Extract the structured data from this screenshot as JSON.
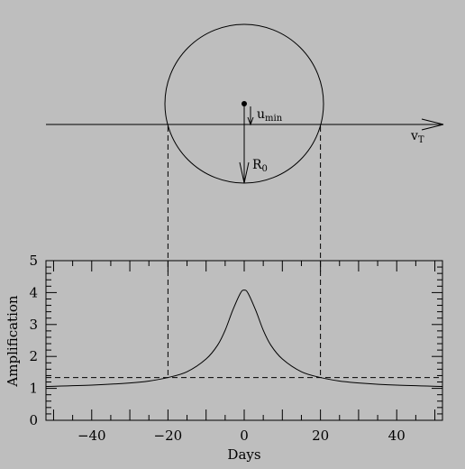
{
  "diagram": {
    "labels": {
      "impact_parameter": "u",
      "impact_parameter_sub": "min",
      "velocity": "v",
      "velocity_sub": "T",
      "einstein_radius": "R",
      "einstein_radius_sub": "0"
    },
    "line_color": "#000000",
    "background_color": "#bebebe"
  },
  "chart_data": {
    "type": "line",
    "xlabel": "Days",
    "ylabel": "Amplification",
    "xlim": [
      -52,
      52
    ],
    "ylim": [
      0,
      5
    ],
    "x_ticks": [
      -40,
      -20,
      0,
      20,
      40
    ],
    "x_tick_labels": [
      "−40",
      "−20",
      "0",
      "20",
      "40"
    ],
    "y_ticks": [
      0,
      1,
      2,
      3,
      4,
      5
    ],
    "y_tick_labels": [
      "0",
      "1",
      "2",
      "3",
      "4",
      "5"
    ],
    "grid": false,
    "series": [
      {
        "x": [
          -52,
          -40,
          -30,
          -25,
          -20,
          -15,
          -10,
          -7,
          -5,
          -3,
          -1,
          0,
          1,
          3,
          5,
          7,
          10,
          15,
          20,
          25,
          30,
          40,
          52
        ],
        "y": [
          1.06,
          1.1,
          1.17,
          1.23,
          1.34,
          1.52,
          1.92,
          2.35,
          2.82,
          3.45,
          3.98,
          4.08,
          3.98,
          3.45,
          2.82,
          2.35,
          1.92,
          1.52,
          1.34,
          1.23,
          1.17,
          1.1,
          1.06
        ]
      }
    ],
    "threshold_y": 1.34,
    "threshold_days": [
      -20,
      20
    ]
  }
}
